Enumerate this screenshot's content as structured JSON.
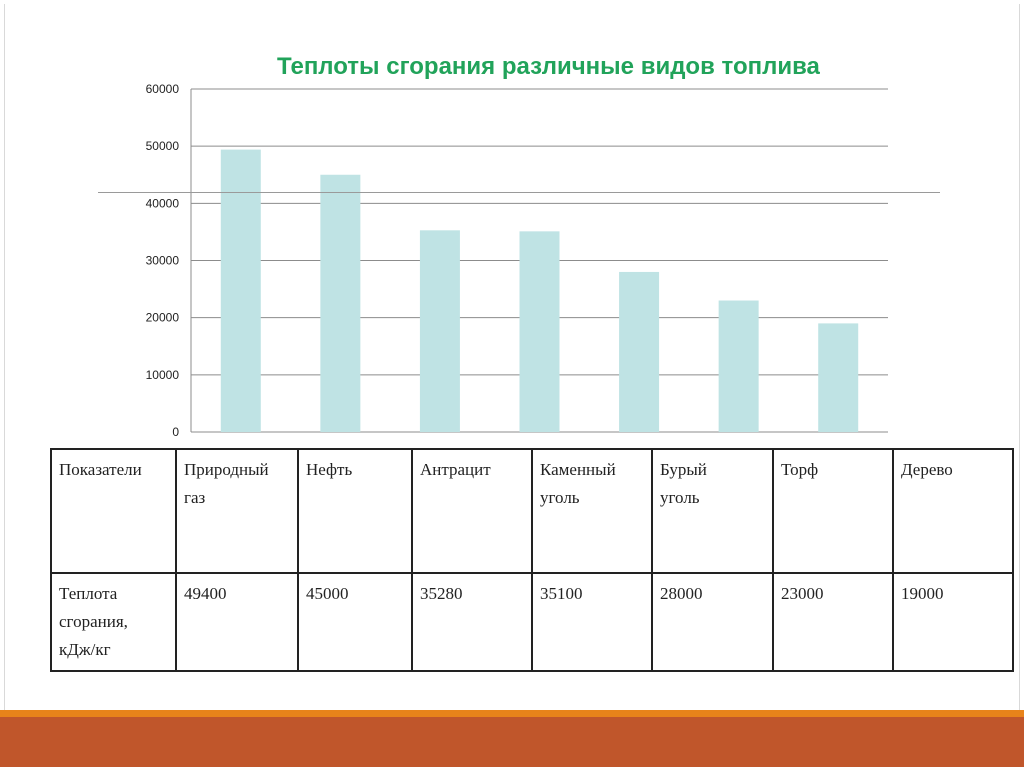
{
  "chart_data": {
    "type": "bar",
    "title": "Теплоты сгорания различные видов топлива",
    "categories": [
      "Природный газ",
      "Нефть",
      "Антрацит",
      "Каменный уголь",
      "Бурый уголь",
      "Торф",
      "Дерево"
    ],
    "values": [
      49400,
      45000,
      35280,
      35100,
      28000,
      23000,
      19000
    ],
    "ylim": [
      0,
      60000
    ],
    "yticks": [
      "0",
      "10000",
      "20000",
      "30000",
      "40000",
      "50000",
      "60000"
    ],
    "grid": true,
    "bar_color": "#bfe3e4"
  },
  "table": {
    "header_label": "Показатели",
    "columns": [
      [
        "Природный",
        "газ"
      ],
      [
        "Нефть"
      ],
      [
        "Антрацит"
      ],
      [
        "Каменный",
        "уголь"
      ],
      [
        "Бурый",
        "уголь"
      ],
      [
        "Торф"
      ],
      [
        "Дерево"
      ]
    ],
    "row_label": [
      "Теплота",
      "сгорания,",
      "кДж/кг"
    ],
    "values": [
      "49400",
      "45000",
      "35280",
      "35100",
      "28000",
      "23000",
      "19000"
    ]
  },
  "colors": {
    "title": "#21a35a",
    "footer_orange": "#e8831a",
    "footer_brown": "#c0562b"
  }
}
